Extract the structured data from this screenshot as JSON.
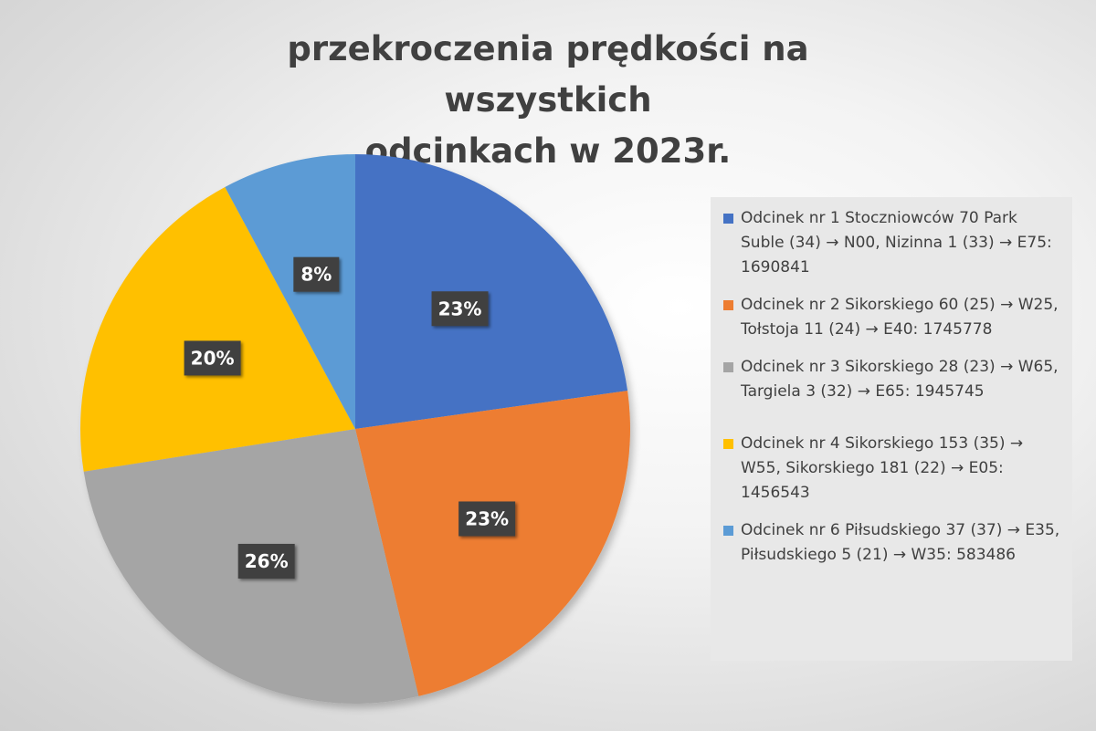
{
  "chart_data": {
    "type": "pie",
    "title": "przekroczenia prędkości na wszystkich odcinkach w 2023r.",
    "title_lines": [
      "przekroczenia prędkości na wszystkich",
      "odcinkach w 2023r."
    ],
    "legend_placement": "right",
    "slices": [
      {
        "label": "Odcinek nr 1 Stoczniowców 70 Park Suble (34) → N00, Nizinna 1 (33) → E75: 1690841",
        "value": 1690841,
        "percent_label": "23%",
        "color": "#4472c4"
      },
      {
        "label": "Odcinek nr 2 Sikorskiego 60 (25) → W25, Tołstoja 11 (24) → E40: 1745778",
        "value": 1745778,
        "percent_label": "23%",
        "color": "#ed7d31"
      },
      {
        "label": "Odcinek nr 3 Sikorskiego 28 (23) → W65, Targiela 3 (32) →  E65: 1945745",
        "value": 1945745,
        "percent_label": "26%",
        "color": "#a5a5a5"
      },
      {
        "label": "Odcinek nr 4 Sikorskiego 153 (35) → W55, Sikorskiego 181 (22) →  E05: 1456543",
        "value": 1456543,
        "percent_label": "20%",
        "color": "#ffc000"
      },
      {
        "label": "Odcinek nr 6 Piłsudskiego 37 (37) → E35, Piłsudskiego 5 (21) → W35: 583486",
        "value": 583486,
        "percent_label": "8%",
        "color": "#5b9bd5"
      }
    ]
  }
}
